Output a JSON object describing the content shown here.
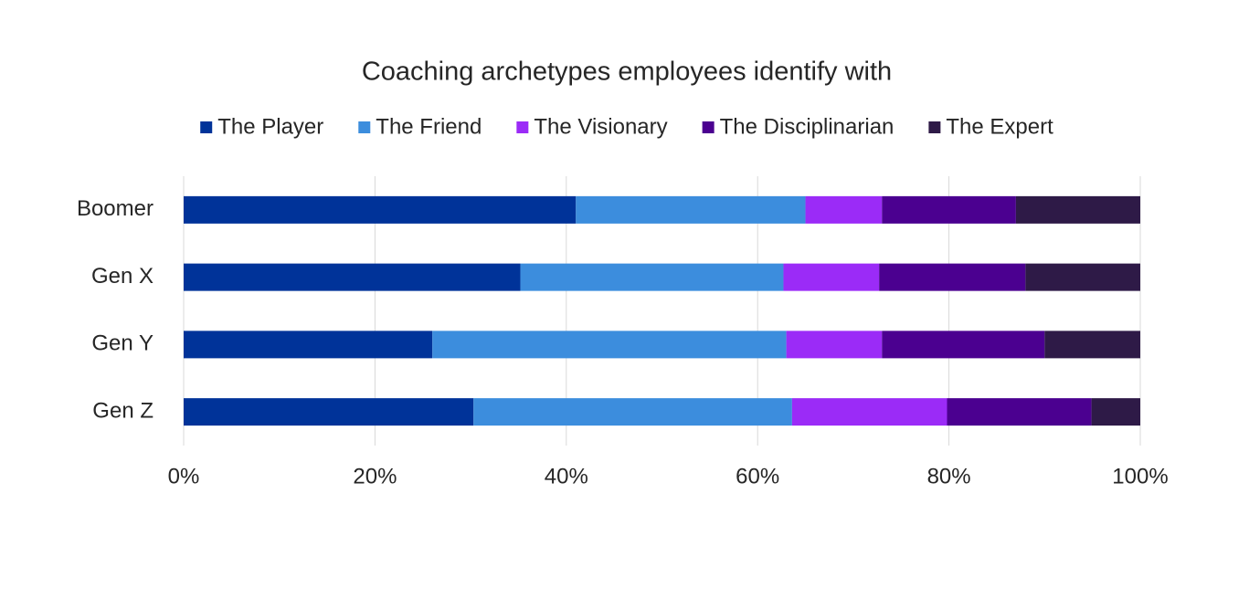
{
  "chart_data": {
    "type": "stacked-bar-horizontal",
    "title": "Coaching archetypes employees identify with",
    "categories": [
      "Boomer",
      "Gen X",
      "Gen Y",
      "Gen Z"
    ],
    "series": [
      {
        "name": "The Player",
        "color": "#003399",
        "values": [
          41.0,
          35.2,
          26.0,
          30.3
        ]
      },
      {
        "name": "The Friend",
        "color": "#3c8ddd",
        "values": [
          24.0,
          27.5,
          37.0,
          33.3
        ]
      },
      {
        "name": "The Visionary",
        "color": "#9b2bf7",
        "values": [
          8.0,
          10.0,
          10.0,
          16.2
        ]
      },
      {
        "name": "The Disciplinarian",
        "color": "#4b0090",
        "values": [
          14.0,
          15.3,
          17.0,
          15.1
        ]
      },
      {
        "name": "The Expert",
        "color": "#2e1a47",
        "values": [
          13.0,
          12.0,
          10.0,
          5.1
        ]
      }
    ],
    "xlim": [
      0,
      100
    ],
    "xticks": [
      {
        "value": 0,
        "label": "0%"
      },
      {
        "value": 20,
        "label": "20%"
      },
      {
        "value": 40,
        "label": "40%"
      },
      {
        "value": 60,
        "label": "60%"
      },
      {
        "value": 80,
        "label": "80%"
      },
      {
        "value": 100,
        "label": "100%"
      }
    ],
    "grid": true,
    "legend": "top"
  }
}
